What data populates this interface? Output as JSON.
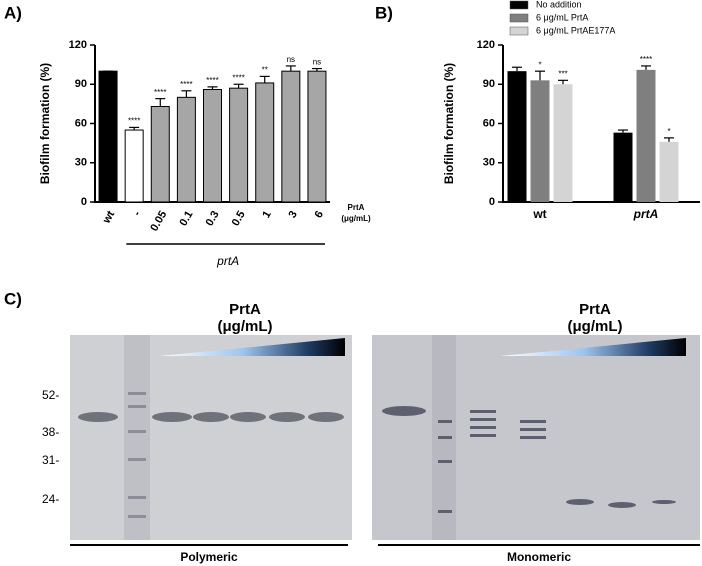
{
  "chart_data": [
    {
      "type": "bar",
      "label": "A)",
      "ylabel": "Biofilm formation (%)",
      "categories": [
        "wt",
        "-",
        "0.05",
        "0.1",
        "0.3",
        "0.5",
        "1",
        "3",
        "6"
      ],
      "values": [
        100,
        55,
        73,
        80,
        86,
        87,
        91,
        100,
        100
      ],
      "errors": [
        0,
        2,
        6,
        5,
        2,
        3,
        5,
        4,
        2
      ],
      "value_labels": [
        null,
        "****",
        "****",
        "****",
        "****",
        "****",
        "**",
        "ns",
        "ns"
      ],
      "colors": [
        "#000000",
        "#ffffff",
        "#a6a6a6",
        "#a6a6a6",
        "#a6a6a6",
        "#a6a6a6",
        "#a6a6a6",
        "#a6a6a6",
        "#a6a6a6"
      ],
      "group_label": "prtA",
      "x_note": [
        "PrtA",
        "(μg/mL)"
      ],
      "ylim": [
        0,
        120
      ],
      "yticks": [
        0,
        30,
        60,
        90,
        120
      ]
    },
    {
      "type": "bar",
      "label": "B)",
      "ylabel": "Biofilm formation (%)",
      "categories": [
        "wt",
        "prtA"
      ],
      "series": [
        {
          "name": "No addition",
          "color": "#000000",
          "values": [
            100,
            53
          ],
          "errors": [
            3,
            2
          ],
          "value_labels": [
            null,
            null
          ]
        },
        {
          "name": "6 μg/mL PrtA",
          "color": "#7f7f7f",
          "values": [
            93,
            101
          ],
          "errors": [
            7,
            3
          ],
          "value_labels": [
            "*",
            "****"
          ]
        },
        {
          "name": "6 μg/mL PrtAE177A",
          "color": "#d4d4d4",
          "values": [
            90,
            46
          ],
          "errors": [
            3,
            3
          ],
          "value_labels": [
            "***",
            "*"
          ]
        }
      ],
      "legend": "top",
      "ylim": [
        0,
        120
      ],
      "yticks": [
        0,
        30,
        60,
        90,
        120
      ]
    }
  ],
  "gel": {
    "label": "C)",
    "markers": [
      "52-",
      "38-",
      "31-",
      "24-"
    ],
    "panels": [
      {
        "heading": [
          "PrtA",
          "(μg/mL)"
        ],
        "caption": "Polymeric"
      },
      {
        "heading": [
          "PrtA",
          "(μg/mL)"
        ],
        "caption": "Monomeric"
      }
    ]
  }
}
